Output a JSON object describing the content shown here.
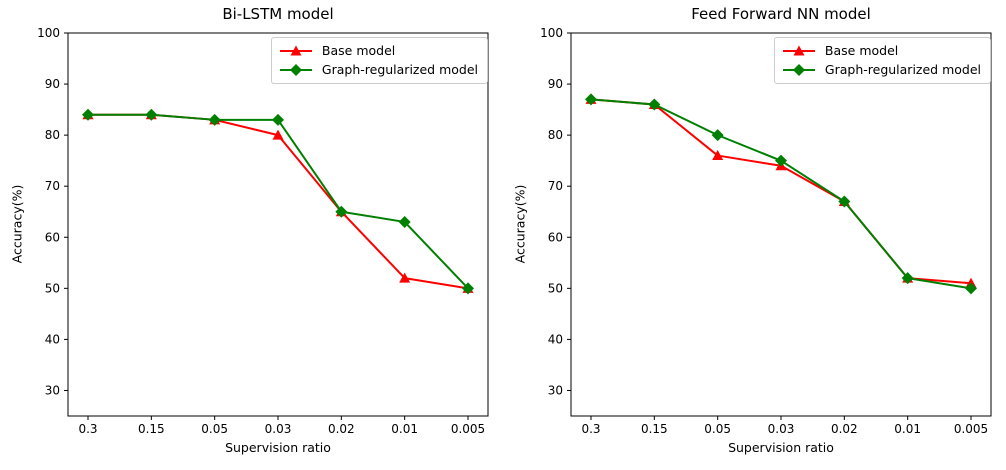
{
  "figure": {
    "background": "#ffffff",
    "spine_color": "#000000",
    "legend_border_color": "#cccccc"
  },
  "chart_data": [
    {
      "type": "line",
      "title": "Bi-LSTM model",
      "xlabel": "Supervision ratio",
      "ylabel": "Accuracy(%)",
      "categories": [
        "0.3",
        "0.15",
        "0.05",
        "0.03",
        "0.02",
        "0.01",
        "0.005"
      ],
      "series": [
        {
          "name": "Base model",
          "color": "#ff0000",
          "marker": "triangle",
          "values": [
            84,
            84,
            83,
            80,
            65,
            52,
            50
          ]
        },
        {
          "name": "Graph-regularized model",
          "color": "#008000",
          "marker": "diamond",
          "values": [
            84,
            84,
            83,
            83,
            65,
            63,
            50
          ]
        }
      ],
      "ylim": [
        25,
        100
      ],
      "yticks": [
        30,
        40,
        50,
        60,
        70,
        80,
        90,
        100
      ],
      "grid": false,
      "legend_position": "upper right"
    },
    {
      "type": "line",
      "title": "Feed Forward NN model",
      "xlabel": "Supervision ratio",
      "ylabel": "Accuracy(%)",
      "categories": [
        "0.3",
        "0.15",
        "0.05",
        "0.03",
        "0.02",
        "0.01",
        "0.005"
      ],
      "series": [
        {
          "name": "Base model",
          "color": "#ff0000",
          "marker": "triangle",
          "values": [
            87,
            86,
            76,
            74,
            67,
            52,
            51
          ]
        },
        {
          "name": "Graph-regularized model",
          "color": "#008000",
          "marker": "diamond",
          "values": [
            87,
            86,
            80,
            75,
            67,
            52,
            50
          ]
        }
      ],
      "ylim": [
        25,
        100
      ],
      "yticks": [
        30,
        40,
        50,
        60,
        70,
        80,
        90,
        100
      ],
      "grid": false,
      "legend_position": "upper right"
    }
  ]
}
